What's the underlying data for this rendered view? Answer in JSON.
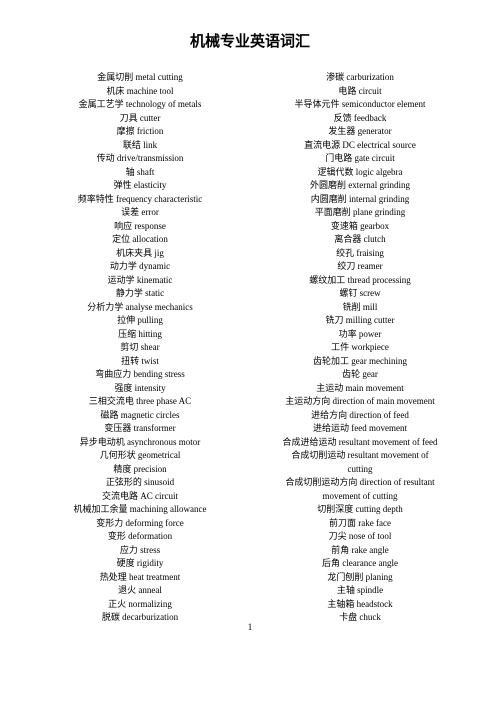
{
  "title": "机械专业英语词汇",
  "title_fontsize": 15,
  "entry_fontsize": 9,
  "text_color": "#000000",
  "background_color": "#ffffff",
  "page_number": "1",
  "left_column": [
    "金属切削 metal cutting",
    "机床 machine tool",
    "金属工艺学 technology of metals",
    "刀具 cutter",
    "摩擦 friction",
    "联结 link",
    "传动 drive/transmission",
    "轴 shaft",
    "弹性 elasticity",
    "频率特性 frequency characteristic",
    "误差 error",
    "响应 response",
    "定位 allocation",
    "机床夹具 jig",
    "动力学 dynamic",
    "运动学 kinematic",
    "静力学 static",
    "分析力学 analyse mechanics",
    "拉伸 pulling",
    "压缩 hitting",
    "剪切 shear",
    "扭转 twist",
    "弯曲应力 bending stress",
    "强度 intensity",
    "三相交流电 three phase AC",
    "磁路 magnetic circles",
    "变压器 transformer",
    "异步电动机 asynchronous motor",
    "几何形状 geometrical",
    "精度 precision",
    "正弦形的 sinusoid",
    "交流电路 AC circuit",
    "机械加工余量 machining allowance",
    "变形力 deforming force",
    "变形 deformation",
    "应力 stress",
    "硬度 rigidity",
    "热处理 heat treatment",
    "退火 anneal",
    "正火 normalizing",
    "脱碳 decarburization"
  ],
  "right_column": [
    "渗碳 carburization",
    "电路 circuit",
    "半导体元件 semiconductor element",
    "反馈 feedback",
    "发生器 generator",
    "直流电源 DC electrical source",
    "门电路 gate circuit",
    "逻辑代数 logic algebra",
    "外圆磨削 external grinding",
    "内圆磨削 internal grinding",
    "平面磨削 plane grinding",
    "变速箱 gearbox",
    "离合器 clutch",
    "绞孔 fraising",
    "绞刀 reamer",
    "螺纹加工 thread processing",
    "螺钉 screw",
    "铣削 mill",
    "铣刀 milling cutter",
    "功率 power",
    "工件 workpiece",
    "齿轮加工 gear mechining",
    "齿轮 gear",
    "主运动 main movement",
    "主运动方向 direction of main movement",
    "进给方向 direction of feed",
    "进给运动 feed movement",
    "合成进给运动 resultant movement of feed",
    "合成切削运动 resultant movement of",
    "cutting",
    "合成切削运动方向 direction of resultant",
    "movement of cutting",
    "切削深度 cutting depth",
    "前刀面 rake face",
    "刀尖 nose of tool",
    "前角 rake angle",
    "后角 clearance angle",
    "龙门刨削 planing",
    "主轴 spindle",
    "主轴箱 headstock",
    "卡盘 chuck"
  ]
}
